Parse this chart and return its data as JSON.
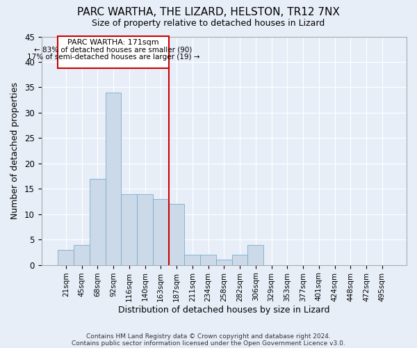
{
  "title": "PARC WARTHA, THE LIZARD, HELSTON, TR12 7NX",
  "subtitle": "Size of property relative to detached houses in Lizard",
  "xlabel": "Distribution of detached houses by size in Lizard",
  "ylabel": "Number of detached properties",
  "bar_color": "#ccd9e8",
  "bar_edge_color": "#7aabcc",
  "categories": [
    "21sqm",
    "45sqm",
    "68sqm",
    "92sqm",
    "116sqm",
    "140sqm",
    "163sqm",
    "187sqm",
    "211sqm",
    "234sqm",
    "258sqm",
    "282sqm",
    "306sqm",
    "329sqm",
    "353sqm",
    "377sqm",
    "401sqm",
    "424sqm",
    "448sqm",
    "472sqm",
    "495sqm"
  ],
  "values": [
    3,
    4,
    17,
    34,
    14,
    14,
    13,
    12,
    2,
    2,
    1,
    2,
    4,
    0,
    0,
    0,
    0,
    0,
    0,
    0,
    0
  ],
  "vline_index": 7,
  "vline_color": "#cc0000",
  "annotation_box_color": "#cc0000",
  "ylim": [
    0,
    45
  ],
  "yticks": [
    0,
    5,
    10,
    15,
    20,
    25,
    30,
    35,
    40,
    45
  ],
  "footer1": "Contains HM Land Registry data © Crown copyright and database right 2024.",
  "footer2": "Contains public sector information licensed under the Open Government Licence v3.0.",
  "background_color": "#e8eef8",
  "grid_color": "#ffffff",
  "title_fontsize": 11,
  "subtitle_fontsize": 9
}
